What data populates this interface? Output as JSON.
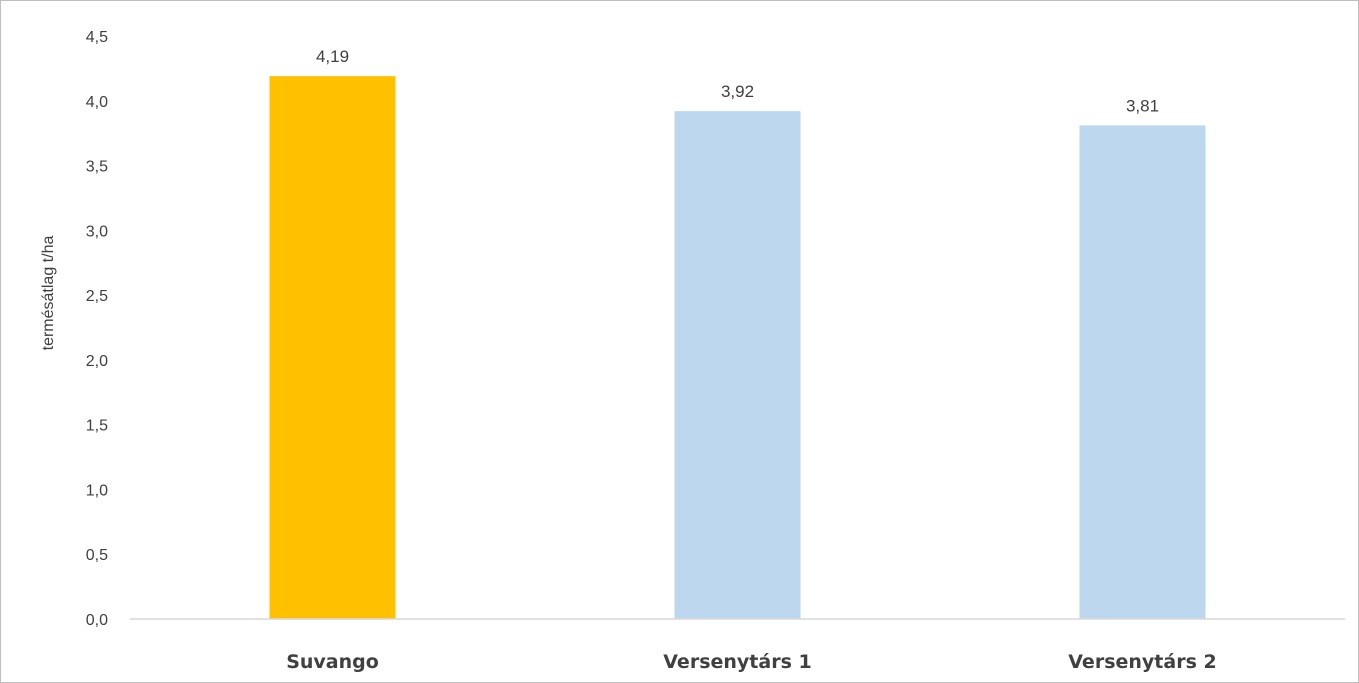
{
  "chart_data": {
    "type": "bar",
    "categories": [
      "Suvango",
      "Versenytárs 1",
      "Versenytárs 2"
    ],
    "values": [
      4.19,
      3.92,
      3.81
    ],
    "data_labels": [
      "4,19",
      "3,92",
      "3,81"
    ],
    "bar_colors": [
      "#ffc000",
      "#bdd7ee",
      "#bdd7ee"
    ],
    "title": "",
    "xlabel": "",
    "ylabel": "termésátlag t/ha",
    "ylim": [
      0,
      4.5
    ],
    "yticks": [
      0,
      0.5,
      1.0,
      1.5,
      2.0,
      2.5,
      3.0,
      3.5,
      4.0,
      4.5
    ],
    "ytick_labels": [
      "0,0",
      "0,5",
      "1,0",
      "1,5",
      "2,0",
      "2,5",
      "3,0",
      "3,5",
      "4,0",
      "4,5"
    ],
    "grid": false,
    "legend": "none"
  }
}
